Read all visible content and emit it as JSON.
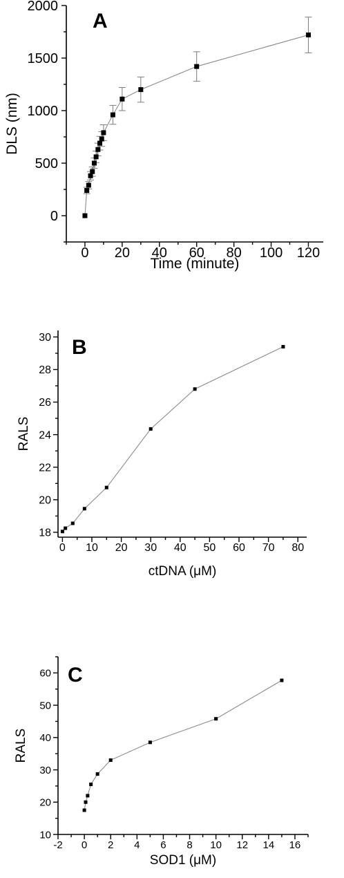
{
  "chart_data": [
    {
      "type": "line",
      "panel_label": "A",
      "xlabel": "Time (minute)",
      "ylabel": "DLS (nm)",
      "xlim": [
        -10,
        128
      ],
      "ylim": [
        -250,
        2000
      ],
      "x_ticks": [
        0,
        20,
        40,
        60,
        80,
        100,
        120
      ],
      "y_ticks": [
        0,
        500,
        1000,
        1500,
        2000
      ],
      "x_minor_step": 10,
      "y_minor_step": 250,
      "grid": false,
      "series": [
        {
          "x": [
            0,
            1,
            2,
            3,
            4,
            5,
            6,
            7,
            8,
            9,
            10,
            15,
            20,
            30,
            60,
            120
          ],
          "y": [
            0,
            240,
            290,
            380,
            420,
            500,
            560,
            630,
            690,
            730,
            790,
            960,
            1110,
            1200,
            1420,
            1720
          ],
          "err": [
            0,
            30,
            35,
            40,
            45,
            50,
            55,
            60,
            65,
            70,
            75,
            90,
            110,
            120,
            140,
            170
          ]
        }
      ]
    },
    {
      "type": "line",
      "panel_label": "B",
      "xlabel": "ctDNA (μM)",
      "ylabel": "RALS",
      "xlim": [
        -1.5,
        83
      ],
      "ylim": [
        17.7,
        30.4
      ],
      "x_ticks": [
        0,
        10,
        20,
        30,
        40,
        50,
        60,
        70,
        80
      ],
      "y_ticks": [
        18,
        20,
        22,
        24,
        26,
        28,
        30
      ],
      "x_minor_step": 5,
      "y_minor_step": 1,
      "grid": false,
      "series": [
        {
          "x": [
            0,
            1,
            3.5,
            7.5,
            15,
            30,
            45,
            75
          ],
          "y": [
            18.05,
            18.25,
            18.55,
            19.45,
            20.75,
            24.35,
            26.8,
            29.4
          ]
        }
      ]
    },
    {
      "type": "line",
      "panel_label": "C",
      "xlabel": "SOD1 (μM)",
      "ylabel": "RALS",
      "xlim": [
        -2,
        17
      ],
      "ylim": [
        10,
        65
      ],
      "x_ticks": [
        -2,
        0,
        2,
        4,
        6,
        8,
        10,
        12,
        14,
        16
      ],
      "y_ticks": [
        10,
        20,
        30,
        40,
        50,
        60
      ],
      "x_minor_step": 1,
      "y_minor_step": 5,
      "grid": false,
      "series": [
        {
          "x": [
            0,
            0.1,
            0.25,
            0.5,
            1,
            2,
            5,
            10,
            15
          ],
          "y": [
            17.5,
            20,
            22,
            25.5,
            28.7,
            33,
            38.5,
            45.8,
            57.7
          ]
        }
      ]
    }
  ]
}
